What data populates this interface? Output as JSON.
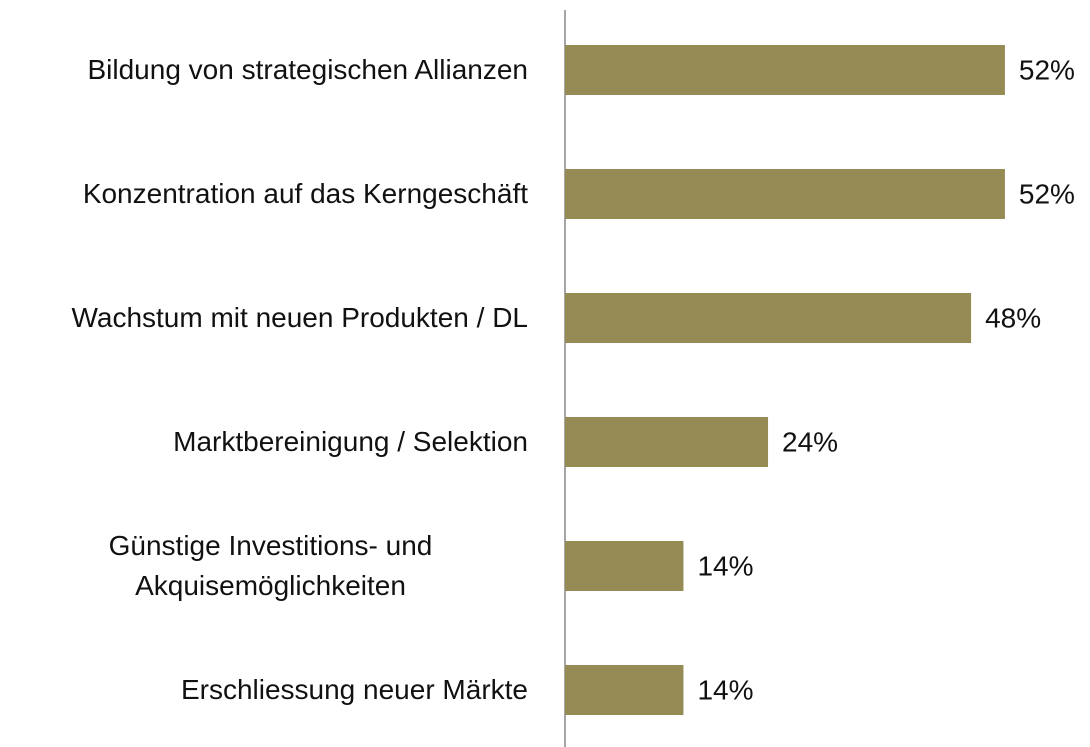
{
  "chart_data": {
    "type": "bar",
    "orientation": "horizontal",
    "categories": [
      "Bildung von strategischen Allianzen",
      "Konzentration auf das Kerngeschäft",
      "Wachstum mit neuen Produkten / DL",
      "Marktbereinigung / Selektion",
      "Günstige Investitions- und Akquisemöglichkeiten",
      "Erschliessung neuer Märkte"
    ],
    "values": [
      52,
      52,
      48,
      24,
      14,
      14
    ],
    "value_labels": [
      "52%",
      "52%",
      "48%",
      "24%",
      "14%",
      "14%"
    ],
    "color": "#968b55"
  }
}
